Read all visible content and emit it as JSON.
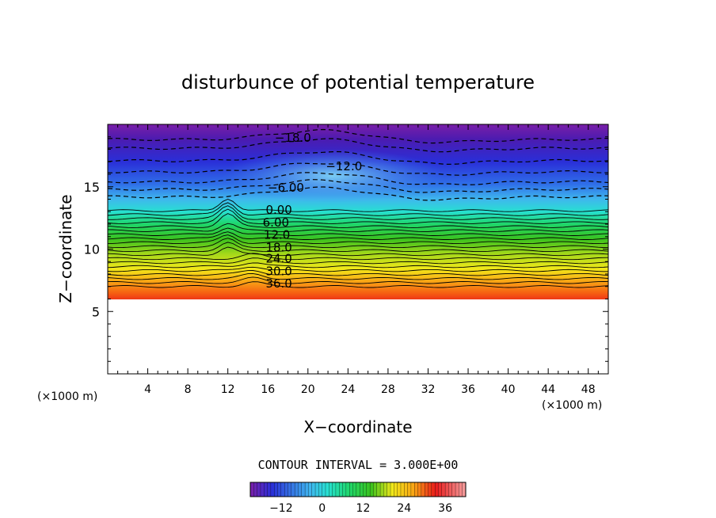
{
  "chart_data": {
    "type": "contour",
    "title": "disturbunce of potential temperature",
    "xlabel": "X−coordinate",
    "ylabel": "Z−coordinate",
    "x_unit_left": "(×1000 m)",
    "x_unit_right": "(×1000 m)",
    "xlim": [
      0,
      50
    ],
    "ylim": [
      0,
      20
    ],
    "x_ticks": [
      {
        "value": 4,
        "label": "4"
      },
      {
        "value": 8,
        "label": "8"
      },
      {
        "value": 12,
        "label": "12"
      },
      {
        "value": 16,
        "label": "16"
      },
      {
        "value": 20,
        "label": "20"
      },
      {
        "value": 24,
        "label": "24"
      },
      {
        "value": 28,
        "label": "28"
      },
      {
        "value": 32,
        "label": "32"
      },
      {
        "value": 36,
        "label": "36"
      },
      {
        "value": 40,
        "label": "40"
      },
      {
        "value": 44,
        "label": "44"
      },
      {
        "value": 48,
        "label": "48"
      }
    ],
    "y_ticks": [
      {
        "value": 5,
        "label": "5"
      },
      {
        "value": 10,
        "label": "10"
      },
      {
        "value": 15,
        "label": "15"
      }
    ],
    "contour_interval_text": "CONTOUR INTERVAL = 3.000E+00",
    "contour_interval": 3,
    "value_range": [
      -21,
      42
    ],
    "contour_labels": [
      {
        "text": "−18.0",
        "x": 18.5,
        "z": 19.0
      },
      {
        "text": "−12.0",
        "x": 23.6,
        "z": 16.7
      },
      {
        "text": "−6.00",
        "x": 17.8,
        "z": 15.0
      },
      {
        "text": "0.00",
        "x": 17.1,
        "z": 13.2
      },
      {
        "text": "6.00",
        "x": 16.8,
        "z": 12.2
      },
      {
        "text": "12.0",
        "x": 16.9,
        "z": 11.2
      },
      {
        "text": "18.0",
        "x": 17.1,
        "z": 10.2
      },
      {
        "text": "24.0",
        "x": 17.1,
        "z": 9.3
      },
      {
        "text": "30.0",
        "x": 17.1,
        "z": 8.3
      },
      {
        "text": "36.0",
        "x": 17.1,
        "z": 7.3
      }
    ],
    "colorbar": {
      "ticks": [
        {
          "value": -12,
          "label": "−12"
        },
        {
          "value": 0,
          "label": "0"
        },
        {
          "value": 12,
          "label": "12"
        },
        {
          "value": 24,
          "label": "24"
        },
        {
          "value": 36,
          "label": "36"
        }
      ],
      "min": -21,
      "max": 42
    }
  }
}
